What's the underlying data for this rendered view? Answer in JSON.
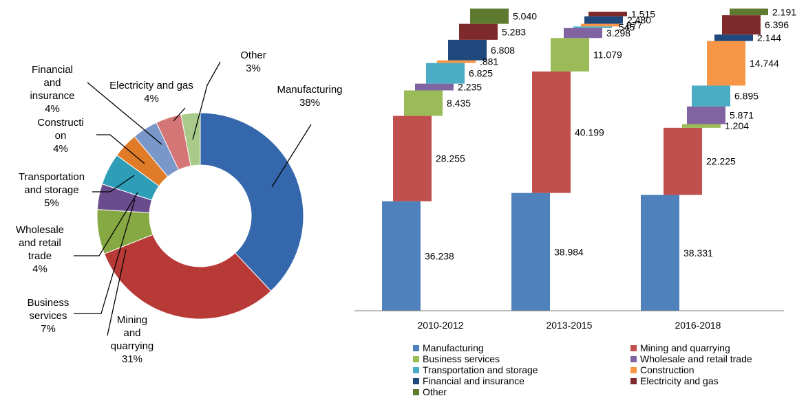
{
  "chart_data": [
    {
      "type": "pie",
      "variant": "donut",
      "categories": [
        "Manufacturing",
        "Mining and quarrying",
        "Business services",
        "Wholesale and retail trade",
        "Transportation and storage",
        "Construction",
        "Financial and insurance",
        "Electricity and gas",
        "Other"
      ],
      "values": [
        38,
        31,
        7,
        4,
        5,
        4,
        4,
        4,
        3
      ],
      "colors": [
        "#3567AC",
        "#B83A37",
        "#86A944",
        "#6A4B8E",
        "#2E9EB8",
        "#E07C27",
        "#7997C9",
        "#D47676",
        "#A9CB8A"
      ],
      "data_labels": [
        {
          "lines": [
            "Manufacturing",
            "38%"
          ]
        },
        {
          "lines": [
            "Mining",
            "and",
            "quarrying",
            "31%"
          ]
        },
        {
          "lines": [
            "Business",
            "services",
            "7%"
          ]
        },
        {
          "lines": [
            "Wholesale",
            "and retail",
            "trade",
            "4%"
          ]
        },
        {
          "lines": [
            "Transportation",
            "and storage",
            "5%"
          ]
        },
        {
          "lines": [
            "Constructi",
            "on",
            "4%"
          ]
        },
        {
          "lines": [
            "Financial",
            "and",
            "insurance",
            "4%"
          ]
        },
        {
          "lines": [
            "Electricity and gas",
            "4%"
          ]
        },
        {
          "lines": [
            "Other",
            "3%"
          ]
        }
      ]
    },
    {
      "type": "bar",
      "variant": "stacked-waterfall",
      "categories": [
        "2010-2012",
        "2013-2015",
        "2016-2018"
      ],
      "series": [
        {
          "name": "Manufacturing",
          "values": [
            36.238,
            38.984,
            38.331
          ],
          "labels": [
            "36.238",
            "38.984",
            "38.331"
          ],
          "color": "#4F81BD"
        },
        {
          "name": "Mining and quarrying",
          "values": [
            28.255,
            40.199,
            22.225
          ],
          "labels": [
            "28.255",
            "40.199",
            "22.225"
          ],
          "color": "#C0504D"
        },
        {
          "name": "Business services",
          "values": [
            8.435,
            11.079,
            1.204
          ],
          "labels": [
            "8.435",
            "11.079",
            "1.204"
          ],
          "color": "#9BBB59"
        },
        {
          "name": "Wholesale and retail trade",
          "values": [
            2.235,
            3.298,
            5.871
          ],
          "labels": [
            "2.235",
            "3.298",
            "5.871"
          ],
          "color": "#8064A2"
        },
        {
          "name": "Transportation and storage",
          "values": [
            6.825,
            0.545,
            6.895
          ],
          "labels": [
            "6.825",
            ".545",
            "6.895"
          ],
          "color": "#4BACC6"
        },
        {
          "name": "Construction",
          "values": [
            0.881,
            0.877,
            14.744
          ],
          "labels": [
            ".881",
            ".877",
            "14.744"
          ],
          "color": "#F79646"
        },
        {
          "name": "Financial and insurance",
          "values": [
            6.808,
            2.48,
            2.144
          ],
          "labels": [
            "6.808",
            "2.480",
            "2.144"
          ],
          "color": "#1F497D"
        },
        {
          "name": "Electricity and gas",
          "values": [
            5.283,
            1.515,
            6.396
          ],
          "labels": [
            "5.283",
            "1.515",
            "6.396"
          ],
          "color": "#7F2A2A"
        },
        {
          "name": "Other",
          "values": [
            5.04,
            null,
            2.191
          ],
          "labels": [
            "5.040",
            "",
            "2.191"
          ],
          "color": "#5E7A30"
        }
      ],
      "legend_position": "bottom",
      "grid": false,
      "legend": [
        {
          "label": "Manufacturing",
          "color": "#4F81BD"
        },
        {
          "label": "Mining and quarrying",
          "color": "#C0504D"
        },
        {
          "label": "Business services",
          "color": "#9BBB59"
        },
        {
          "label": "Wholesale and retail trade",
          "color": "#8064A2"
        },
        {
          "label": "Transportation and storage",
          "color": "#4BACC6"
        },
        {
          "label": "Construction",
          "color": "#F79646"
        },
        {
          "label": "Financial and insurance",
          "color": "#1F497D"
        },
        {
          "label": "Electricity and gas",
          "color": "#7F2A2A"
        },
        {
          "label": "Other",
          "color": "#5E7A30"
        }
      ]
    }
  ]
}
